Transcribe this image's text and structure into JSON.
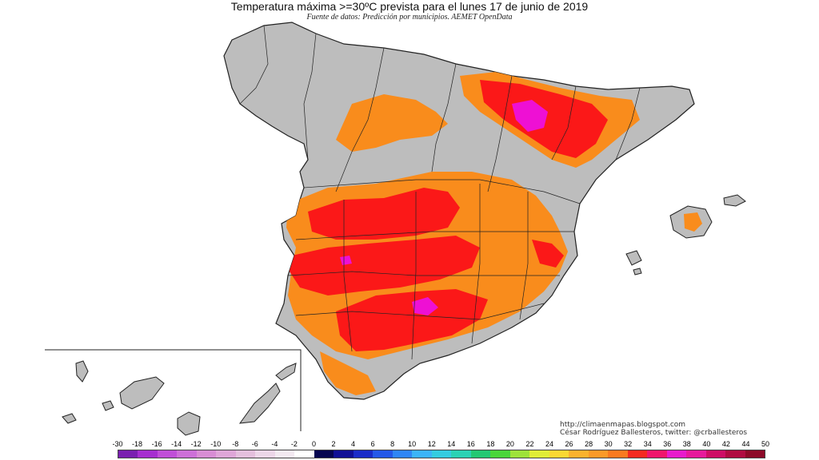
{
  "title": "Temperatura máxima >=30ºC prevista para el lunes 17 de junio de 2019",
  "subtitle": "Fuente de datos: Predicción por municipios. AEMET OpenData",
  "credits": {
    "blog": "http://climaenmapas.blogspot.com",
    "author": "César Rodríguez Ballesteros, twitter: @crballesteros"
  },
  "legend": {
    "labels": [
      "-30",
      "-18",
      "-16",
      "-14",
      "-12",
      "-10",
      "-8",
      "-6",
      "-4",
      "-2",
      "0",
      "2",
      "4",
      "6",
      "8",
      "10",
      "12",
      "14",
      "16",
      "18",
      "20",
      "22",
      "24",
      "26",
      "28",
      "30",
      "32",
      "34",
      "36",
      "38",
      "40",
      "42",
      "44",
      "50"
    ],
    "colors": [
      "#7a1fb0",
      "#a62fd0",
      "#c04fd8",
      "#cd70d8",
      "#d88dd4",
      "#dfa6d8",
      "#e4bfdd",
      "#ecd6e8",
      "#f3e9f1",
      "#ffffff",
      "#060650",
      "#101096",
      "#1a2cc8",
      "#2458e8",
      "#2f86f6",
      "#3bb4f8",
      "#34cce0",
      "#2ad2b4",
      "#22c873",
      "#4ad63a",
      "#9ee23a",
      "#e0ec36",
      "#fbd832",
      "#fbb22e",
      "#fb9a28",
      "#fa7a20",
      "#f52a20",
      "#f0166c",
      "#e81ccc",
      "#e61a9c",
      "#ce0e66",
      "#b00c42",
      "#8c0a28"
    ]
  },
  "map_legend_meaning": {
    "gray": "below 30",
    "orange": "30-32",
    "red": "32-34",
    "magenta": "34-36"
  },
  "colors": {
    "land": "#bdbdbd",
    "orange": "#f98c1c",
    "red": "#fb1818",
    "magenta": "#ee10d4",
    "border": "#222222"
  }
}
